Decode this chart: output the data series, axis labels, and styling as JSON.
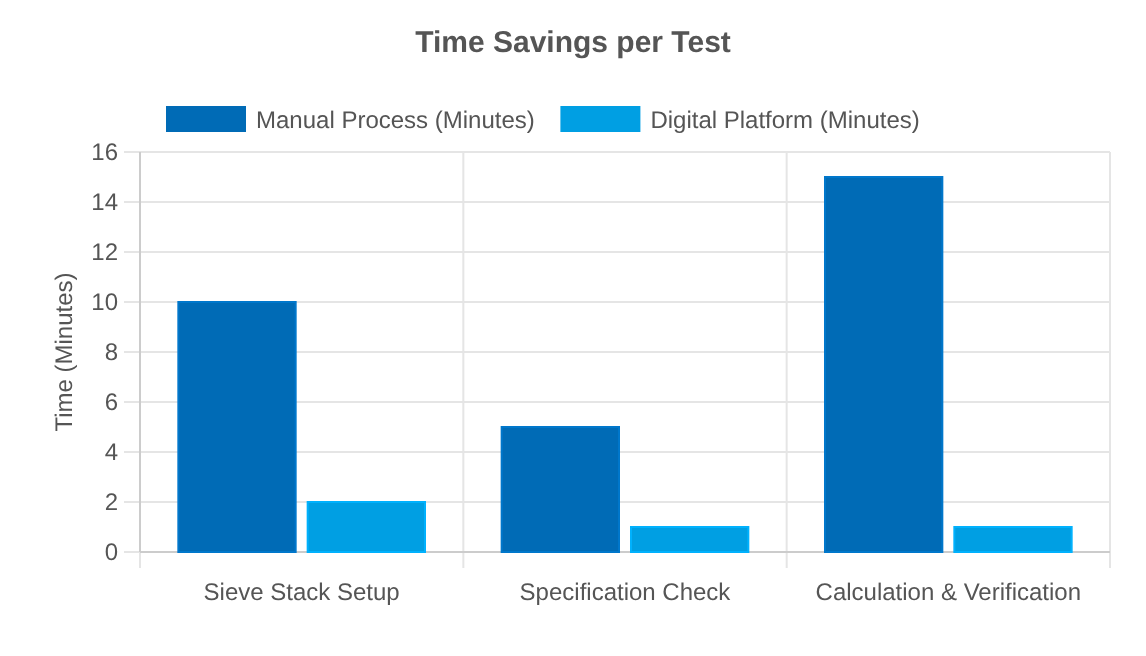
{
  "chart_data": {
    "type": "bar",
    "title": "Time Savings per Test",
    "ylabel": "Time (Minutes)",
    "categories": [
      "Sieve Stack Setup",
      "Specification Check",
      "Calculation & Verification"
    ],
    "series": [
      {
        "name": "Manual Process (Minutes)",
        "color": "#006bb6",
        "values": [
          10,
          5,
          15
        ]
      },
      {
        "name": "Digital Platform (Minutes)",
        "color": "#009fe3",
        "values": [
          2,
          1,
          1
        ]
      }
    ],
    "ylim": [
      0,
      16
    ],
    "yticks": [
      0,
      2,
      4,
      6,
      8,
      10,
      12,
      14,
      16
    ],
    "grid": true,
    "legend": "top"
  }
}
